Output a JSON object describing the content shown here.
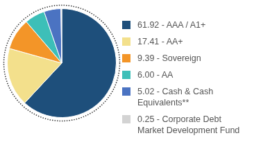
{
  "chart_data": {
    "type": "pie",
    "categories": [
      "61.92 - AAA / A1+",
      "17.41 - AA+",
      "9.39 - Sovereign",
      "6.00 - AA",
      "5.02 - Cash & Cash Equivalents**",
      "0.25 - Corporate Debt Market Development Fund"
    ],
    "values": [
      61.92,
      17.41,
      9.39,
      6.0,
      5.02,
      0.25
    ],
    "colors": [
      "#1e4f7b",
      "#f3e08c",
      "#f39528",
      "#3dbfb8",
      "#4b73c2",
      "#d3d3d3"
    ],
    "legend": "right"
  }
}
